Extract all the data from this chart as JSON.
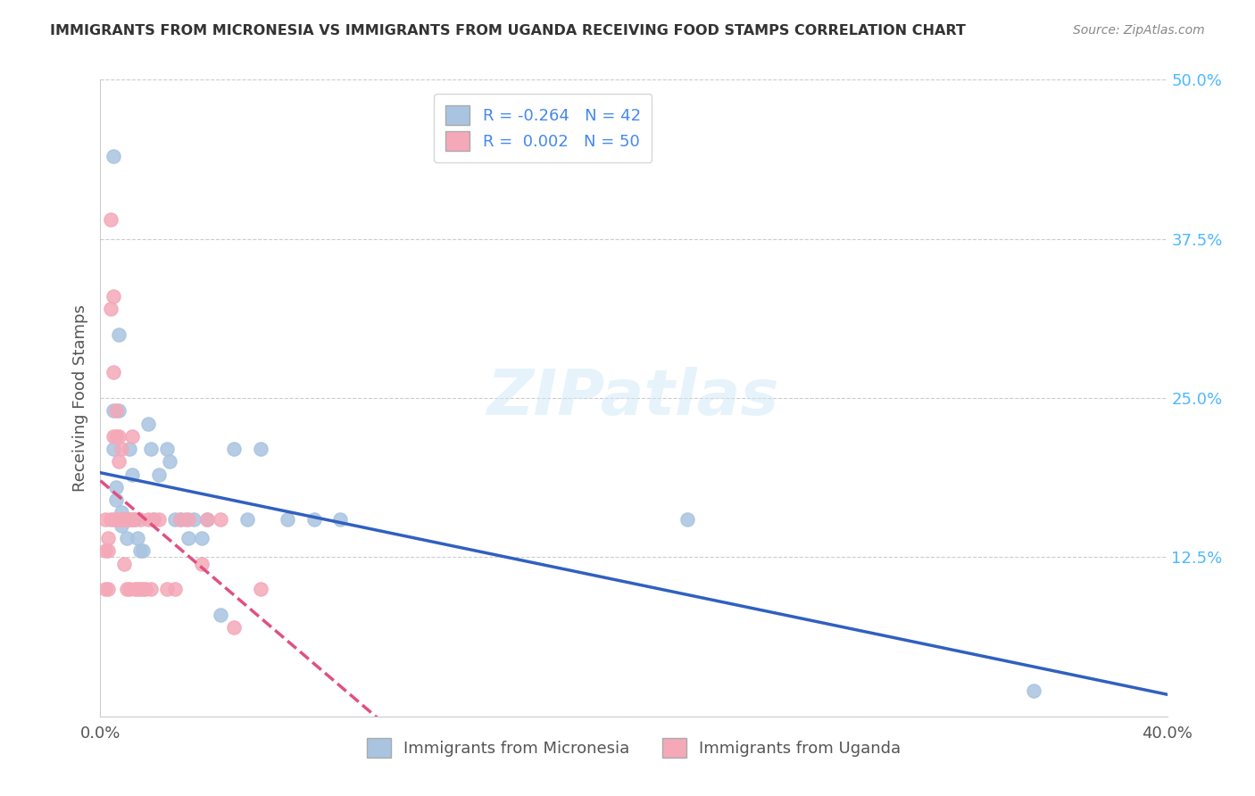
{
  "title": "IMMIGRANTS FROM MICRONESIA VS IMMIGRANTS FROM UGANDA RECEIVING FOOD STAMPS CORRELATION CHART",
  "source": "Source: ZipAtlas.com",
  "ylabel": "Receiving Food Stamps",
  "xlabel_micronesia": "Immigrants from Micronesia",
  "xlabel_uganda": "Immigrants from Uganda",
  "r_micronesia": -0.264,
  "n_micronesia": 42,
  "r_uganda": 0.002,
  "n_uganda": 50,
  "xlim": [
    0.0,
    0.4
  ],
  "ylim": [
    0.0,
    0.5
  ],
  "yticks": [
    0.0,
    0.125,
    0.25,
    0.375,
    0.5
  ],
  "ytick_labels": [
    "",
    "12.5%",
    "25.0%",
    "37.5%",
    "50.0%"
  ],
  "xticks": [
    0.0,
    0.1,
    0.2,
    0.3,
    0.4
  ],
  "xtick_labels": [
    "0.0%",
    "",
    "",
    "",
    "40.0%"
  ],
  "color_micronesia": "#a8c4e0",
  "color_uganda": "#f4a8b8",
  "line_color_micronesia": "#3060c0",
  "line_color_uganda": "#e05080",
  "watermark": "ZIPatlas",
  "micronesia_x": [
    0.005,
    0.005,
    0.005,
    0.006,
    0.006,
    0.007,
    0.007,
    0.008,
    0.008,
    0.009,
    0.01,
    0.01,
    0.011,
    0.011,
    0.012,
    0.012,
    0.013,
    0.014,
    0.015,
    0.016,
    0.018,
    0.019,
    0.02,
    0.022,
    0.025,
    0.026,
    0.028,
    0.03,
    0.032,
    0.033,
    0.035,
    0.038,
    0.04,
    0.045,
    0.05,
    0.055,
    0.06,
    0.07,
    0.08,
    0.09,
    0.22,
    0.35
  ],
  "micronesia_y": [
    0.44,
    0.24,
    0.21,
    0.18,
    0.17,
    0.3,
    0.24,
    0.16,
    0.15,
    0.155,
    0.155,
    0.14,
    0.21,
    0.155,
    0.19,
    0.155,
    0.155,
    0.14,
    0.13,
    0.13,
    0.23,
    0.21,
    0.155,
    0.19,
    0.21,
    0.2,
    0.155,
    0.155,
    0.155,
    0.14,
    0.155,
    0.14,
    0.155,
    0.08,
    0.21,
    0.155,
    0.21,
    0.155,
    0.155,
    0.155,
    0.155,
    0.02
  ],
  "uganda_x": [
    0.002,
    0.002,
    0.002,
    0.003,
    0.003,
    0.003,
    0.004,
    0.004,
    0.004,
    0.005,
    0.005,
    0.005,
    0.005,
    0.006,
    0.006,
    0.006,
    0.007,
    0.007,
    0.007,
    0.008,
    0.008,
    0.009,
    0.009,
    0.01,
    0.01,
    0.01,
    0.011,
    0.011,
    0.012,
    0.012,
    0.013,
    0.013,
    0.014,
    0.015,
    0.015,
    0.016,
    0.017,
    0.018,
    0.019,
    0.02,
    0.022,
    0.025,
    0.028,
    0.03,
    0.033,
    0.038,
    0.04,
    0.045,
    0.05,
    0.06
  ],
  "uganda_y": [
    0.155,
    0.13,
    0.1,
    0.14,
    0.13,
    0.1,
    0.39,
    0.32,
    0.155,
    0.33,
    0.27,
    0.22,
    0.155,
    0.24,
    0.22,
    0.155,
    0.22,
    0.2,
    0.155,
    0.21,
    0.155,
    0.155,
    0.12,
    0.155,
    0.155,
    0.1,
    0.155,
    0.1,
    0.22,
    0.155,
    0.155,
    0.1,
    0.1,
    0.155,
    0.1,
    0.1,
    0.1,
    0.155,
    0.1,
    0.155,
    0.155,
    0.1,
    0.1,
    0.155,
    0.155,
    0.12,
    0.155,
    0.155,
    0.07,
    0.1
  ]
}
